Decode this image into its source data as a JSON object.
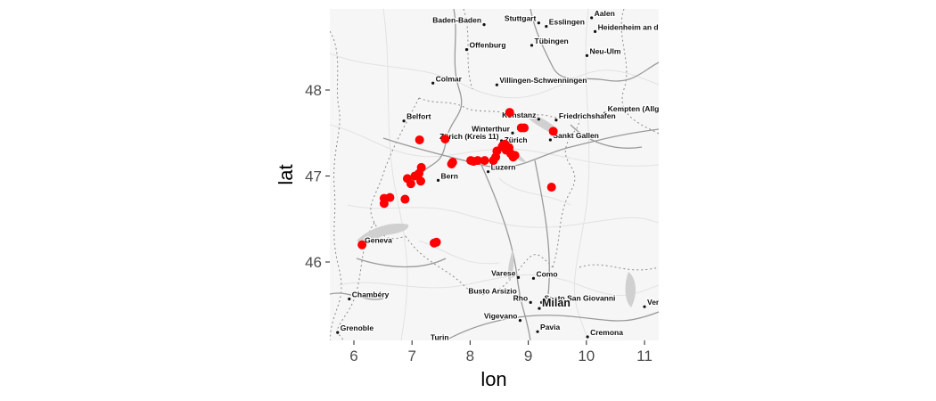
{
  "axes": {
    "x_title": "lon",
    "y_title": "lat",
    "x_ticks": [
      "6",
      "7",
      "8",
      "9",
      "10",
      "11"
    ],
    "y_ticks": [
      "46",
      "47",
      "48"
    ]
  },
  "chart_data": {
    "type": "scatter",
    "title": "",
    "xlabel": "lon",
    "ylabel": "lat",
    "xlim": [
      5.6,
      11.3
    ],
    "ylim": [
      45.1,
      48.95
    ],
    "grid": false,
    "point_color": "#ff0000",
    "basemap": "grey road/terrain map of Switzerland and surroundings",
    "points": [
      {
        "lon": 6.14,
        "lat": 46.2
      },
      {
        "lon": 6.52,
        "lat": 46.68
      },
      {
        "lon": 6.52,
        "lat": 46.74
      },
      {
        "lon": 6.62,
        "lat": 46.75
      },
      {
        "lon": 6.88,
        "lat": 46.73
      },
      {
        "lon": 6.92,
        "lat": 46.97
      },
      {
        "lon": 6.98,
        "lat": 46.91
      },
      {
        "lon": 7.05,
        "lat": 47.0
      },
      {
        "lon": 7.12,
        "lat": 47.03
      },
      {
        "lon": 7.16,
        "lat": 47.1
      },
      {
        "lon": 7.15,
        "lat": 46.94
      },
      {
        "lon": 7.13,
        "lat": 47.42
      },
      {
        "lon": 7.38,
        "lat": 46.22
      },
      {
        "lon": 7.42,
        "lat": 46.23
      },
      {
        "lon": 7.57,
        "lat": 47.43
      },
      {
        "lon": 7.68,
        "lat": 47.14
      },
      {
        "lon": 7.7,
        "lat": 47.16
      },
      {
        "lon": 8.01,
        "lat": 47.18
      },
      {
        "lon": 8.06,
        "lat": 47.17
      },
      {
        "lon": 8.13,
        "lat": 47.18
      },
      {
        "lon": 8.25,
        "lat": 47.18
      },
      {
        "lon": 8.4,
        "lat": 47.18
      },
      {
        "lon": 8.44,
        "lat": 47.22
      },
      {
        "lon": 8.46,
        "lat": 47.29
      },
      {
        "lon": 8.55,
        "lat": 47.34
      },
      {
        "lon": 8.57,
        "lat": 47.36
      },
      {
        "lon": 8.6,
        "lat": 47.37
      },
      {
        "lon": 8.62,
        "lat": 47.3
      },
      {
        "lon": 8.67,
        "lat": 47.33
      },
      {
        "lon": 8.7,
        "lat": 47.26
      },
      {
        "lon": 8.74,
        "lat": 47.22
      },
      {
        "lon": 8.77,
        "lat": 47.24
      },
      {
        "lon": 8.68,
        "lat": 47.74
      },
      {
        "lon": 8.88,
        "lat": 47.56
      },
      {
        "lon": 8.93,
        "lat": 47.56
      },
      {
        "lon": 9.43,
        "lat": 47.52
      },
      {
        "lon": 9.4,
        "lat": 46.87
      }
    ]
  },
  "cities": [
    {
      "name": "Baden-Baden",
      "lon": 8.24,
      "lat": 48.76,
      "anchor": "end"
    },
    {
      "name": "Stuttgart",
      "lon": 9.18,
      "lat": 48.78,
      "anchor": "end"
    },
    {
      "name": "Aalen",
      "lon": 10.09,
      "lat": 48.84,
      "anchor": "start"
    },
    {
      "name": "Heidenheim an de",
      "lon": 10.15,
      "lat": 48.68,
      "anchor": "start"
    },
    {
      "name": "Esslingen",
      "lon": 9.31,
      "lat": 48.74,
      "anchor": "start"
    },
    {
      "name": "Offenburg",
      "lon": 7.94,
      "lat": 48.47,
      "anchor": "start"
    },
    {
      "name": "Tübingen",
      "lon": 9.06,
      "lat": 48.52,
      "anchor": "start"
    },
    {
      "name": "Neu-Ulm",
      "lon": 10.01,
      "lat": 48.4,
      "anchor": "start"
    },
    {
      "name": "Colmar",
      "lon": 7.36,
      "lat": 48.08,
      "anchor": "start"
    },
    {
      "name": "Villingen-Schwenningen",
      "lon": 8.46,
      "lat": 48.06,
      "anchor": "start"
    },
    {
      "name": "Kempten (Allgä",
      "lon": 10.32,
      "lat": 47.73,
      "anchor": "start"
    },
    {
      "name": "Belfort",
      "lon": 6.86,
      "lat": 47.64,
      "anchor": "start"
    },
    {
      "name": "Konstanz",
      "lon": 9.18,
      "lat": 47.66,
      "anchor": "end"
    },
    {
      "name": "Friedrichshafen",
      "lon": 9.48,
      "lat": 47.65,
      "anchor": "start"
    },
    {
      "name": "Winterthur",
      "lon": 8.73,
      "lat": 47.5,
      "anchor": "end"
    },
    {
      "name": "Sankt Gallen",
      "lon": 9.38,
      "lat": 47.42,
      "anchor": "start"
    },
    {
      "name": "Zürich (Kreis 11)",
      "lon": 8.54,
      "lat": 47.41,
      "anchor": "end"
    },
    {
      "name": "Zürich",
      "lon": 8.54,
      "lat": 47.37,
      "anchor": "start"
    },
    {
      "name": "Luzern",
      "lon": 8.31,
      "lat": 47.05,
      "anchor": "start"
    },
    {
      "name": "Bern",
      "lon": 7.45,
      "lat": 46.95,
      "anchor": "start"
    },
    {
      "name": "Geneva",
      "lon": 6.14,
      "lat": 46.2,
      "anchor": "start"
    },
    {
      "name": "Varese",
      "lon": 8.83,
      "lat": 45.82,
      "anchor": "end"
    },
    {
      "name": "Como",
      "lon": 9.09,
      "lat": 45.81,
      "anchor": "start"
    },
    {
      "name": "Chambéry",
      "lon": 5.92,
      "lat": 45.57,
      "anchor": "start"
    },
    {
      "name": "Busto Arsizio",
      "lon": 8.85,
      "lat": 45.61,
      "anchor": "end"
    },
    {
      "name": "Sesto San Giovanni",
      "lon": 9.23,
      "lat": 45.53,
      "anchor": "start"
    },
    {
      "name": "Rho",
      "lon": 9.04,
      "lat": 45.53,
      "anchor": "end"
    },
    {
      "name": "Milan",
      "lon": 9.19,
      "lat": 45.46,
      "anchor": "start",
      "big": true
    },
    {
      "name": "Ven",
      "lon": 11.0,
      "lat": 45.48,
      "anchor": "start"
    },
    {
      "name": "Vigevano",
      "lon": 8.86,
      "lat": 45.32,
      "anchor": "end"
    },
    {
      "name": "Pavia",
      "lon": 9.16,
      "lat": 45.19,
      "anchor": "start"
    },
    {
      "name": "Cremona",
      "lon": 10.02,
      "lat": 45.13,
      "anchor": "start"
    },
    {
      "name": "Grenoble",
      "lon": 5.72,
      "lat": 45.18,
      "anchor": "start"
    },
    {
      "name": "Turin",
      "lon": 7.68,
      "lat": 45.07,
      "anchor": "end"
    }
  ]
}
